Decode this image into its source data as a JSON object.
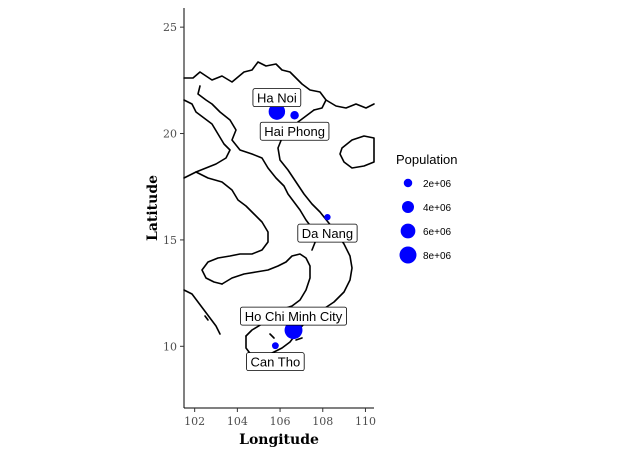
{
  "chart_data": {
    "type": "scatter",
    "title": "",
    "xlabel": "Longitude",
    "ylabel": "Latitude",
    "xlim": [
      101.5,
      110.4
    ],
    "ylim": [
      7.1,
      25.9
    ],
    "x_ticks": [
      102,
      104,
      106,
      108,
      110
    ],
    "y_ticks": [
      10,
      15,
      20,
      25
    ],
    "grid": false,
    "legend_position": "right",
    "point_color": "#0000ff",
    "legend": {
      "title": "Population",
      "entries": [
        {
          "label": "2e+06",
          "value": 2000000
        },
        {
          "label": "4e+06",
          "value": 4000000
        },
        {
          "label": "6e+06",
          "value": 6000000
        },
        {
          "label": "8e+06",
          "value": 8000000
        }
      ]
    },
    "points": [
      {
        "name": "Ha Noi",
        "lon": 105.85,
        "lat": 21.03,
        "population": 7500000,
        "label_anchor": "above"
      },
      {
        "name": "Hai Phong",
        "lon": 106.68,
        "lat": 20.86,
        "population": 2000000,
        "label_anchor": "below"
      },
      {
        "name": "Da Nang",
        "lon": 108.22,
        "lat": 16.07,
        "population": 1100000,
        "label_anchor": "below"
      },
      {
        "name": "Ho Chi Minh City",
        "lon": 106.63,
        "lat": 10.76,
        "population": 8900000,
        "label_anchor": "above"
      },
      {
        "name": "Can Tho",
        "lon": 105.78,
        "lat": 10.03,
        "population": 1300000,
        "label_anchor": "below"
      }
    ]
  }
}
